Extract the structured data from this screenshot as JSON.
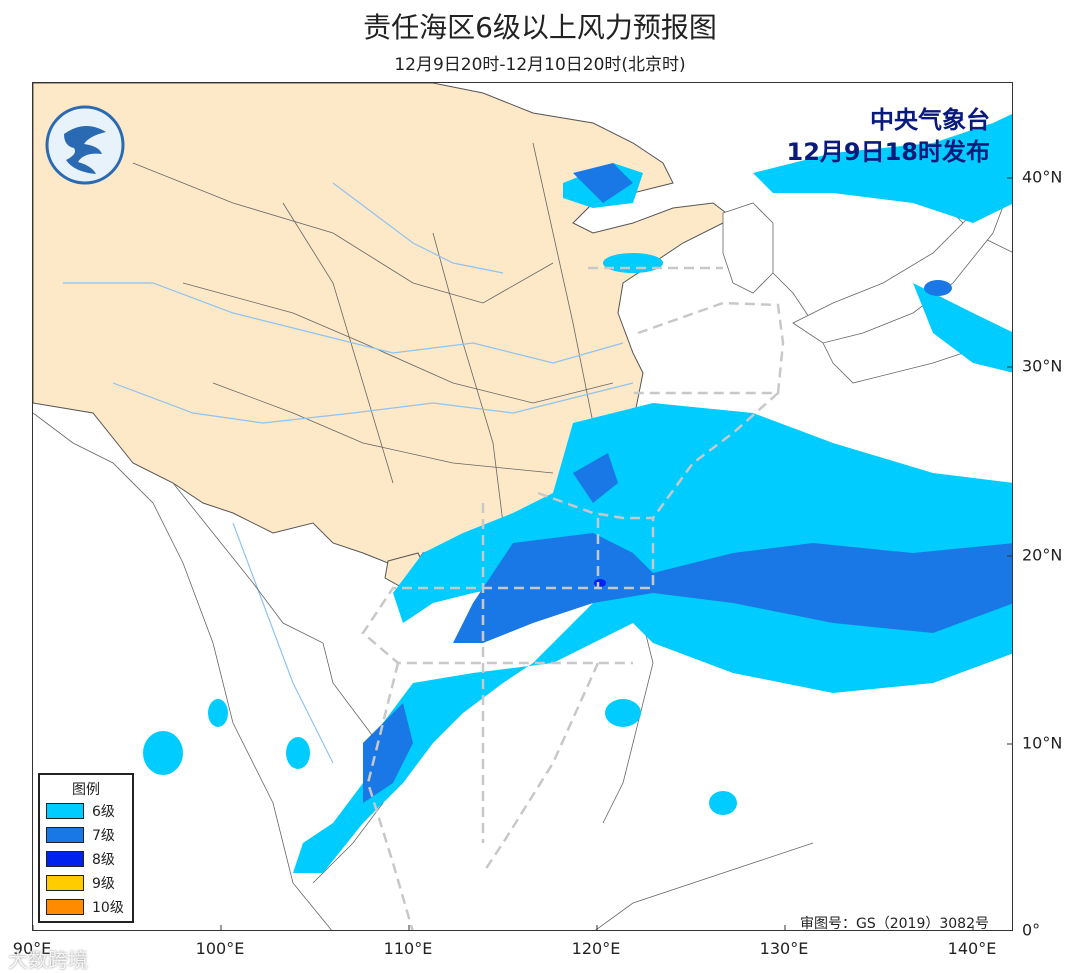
{
  "title": "责任海区6级以上风力预报图",
  "subtitle": "12月9日20时-12月10日20时(北京时)",
  "issuer": {
    "line1": "中央气象台",
    "line2": "12月9日18时发布"
  },
  "x_ticks": [
    "90°E",
    "100°E",
    "110°E",
    "120°E",
    "130°E",
    "140°E"
  ],
  "y_ticks": [
    "40°N",
    "30°N",
    "20°N",
    "10°N",
    "0°"
  ],
  "legend": {
    "title": "图例",
    "items": [
      {
        "label": "6级",
        "color": "#00ccff"
      },
      {
        "label": "7级",
        "color": "#1a78e6"
      },
      {
        "label": "8级",
        "color": "#0022ee"
      },
      {
        "label": "9级",
        "color": "#ffcc00"
      },
      {
        "label": "10级",
        "color": "#ff8c00"
      }
    ]
  },
  "approval": "审图号：GS（2019）3082号",
  "watermark": "大数跨境",
  "colors": {
    "land": "#fde8c8",
    "sea": "#ffffff",
    "level6": "#00ccff",
    "level7": "#1a78e6",
    "level8": "#0022ee"
  }
}
